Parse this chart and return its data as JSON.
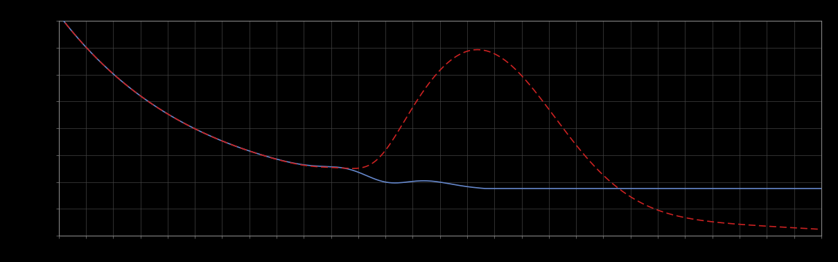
{
  "background_color": "#000000",
  "plot_bg_color": "#000000",
  "grid_color": "#444444",
  "line1_color": "#6688cc",
  "line2_color": "#cc2222",
  "figsize": [
    12.09,
    3.78
  ],
  "dpi": 100,
  "xlim": [
    0,
    100
  ],
  "ylim": [
    0,
    10
  ],
  "n_gridlines_x": 28,
  "n_gridlines_y": 8
}
